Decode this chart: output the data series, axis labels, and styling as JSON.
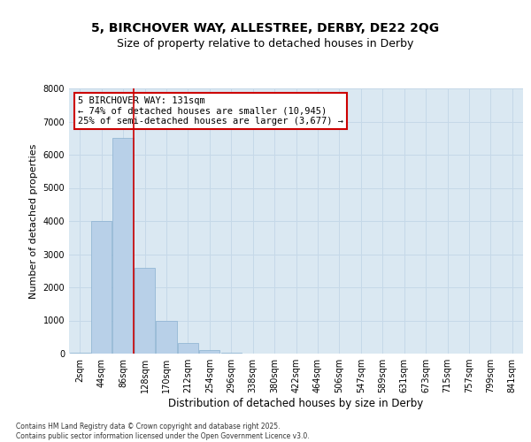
{
  "title1": "5, BIRCHOVER WAY, ALLESTREE, DERBY, DE22 2QG",
  "title2": "Size of property relative to detached houses in Derby",
  "xlabel": "Distribution of detached houses by size in Derby",
  "ylabel": "Number of detached properties",
  "categories": [
    "2sqm",
    "44sqm",
    "86sqm",
    "128sqm",
    "170sqm",
    "212sqm",
    "254sqm",
    "296sqm",
    "338sqm",
    "380sqm",
    "422sqm",
    "464sqm",
    "506sqm",
    "547sqm",
    "589sqm",
    "631sqm",
    "673sqm",
    "715sqm",
    "757sqm",
    "799sqm",
    "841sqm"
  ],
  "values": [
    30,
    4000,
    6500,
    2600,
    1000,
    330,
    120,
    30,
    5,
    2,
    1,
    0,
    0,
    0,
    0,
    0,
    0,
    0,
    0,
    0,
    0
  ],
  "bar_color": "#b8d0e8",
  "bar_edge_color": "#8ab0d0",
  "highlight_index": 3,
  "highlight_line_color": "#cc0000",
  "annotation_text": "5 BIRCHOVER WAY: 131sqm\n← 74% of detached houses are smaller (10,945)\n25% of semi-detached houses are larger (3,677) →",
  "annotation_box_color": "#cc0000",
  "ylim": [
    0,
    8000
  ],
  "grid_color": "#c5d8e8",
  "plot_bg_color": "#dae8f2",
  "footer": "Contains HM Land Registry data © Crown copyright and database right 2025.\nContains public sector information licensed under the Open Government Licence v3.0.",
  "yticks": [
    0,
    1000,
    2000,
    3000,
    4000,
    5000,
    6000,
    7000,
    8000
  ],
  "title_fontsize": 10,
  "subtitle_fontsize": 9
}
